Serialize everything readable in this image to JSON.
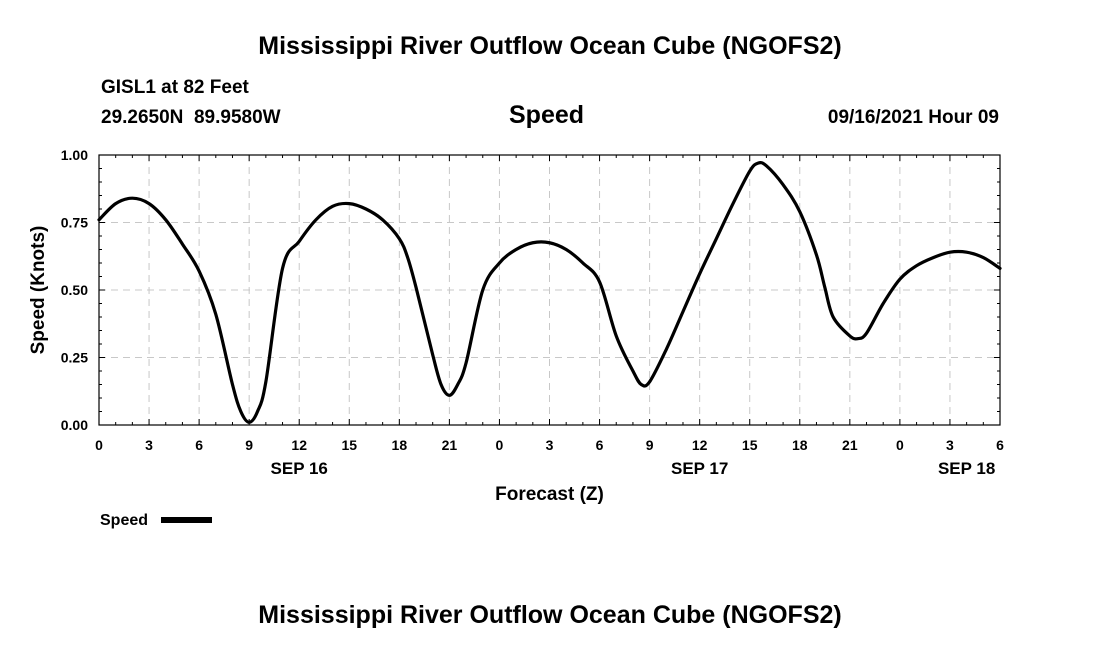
{
  "header": {
    "title": "Mississippi River Outflow Ocean Cube (NGOFS2)",
    "station": "GISL1 at 82 Feet",
    "coords": "29.2650N  89.9580W",
    "variable": "Speed",
    "datetime": "09/16/2021 Hour 09"
  },
  "footer": {
    "title": "Mississippi River Outflow Ocean Cube (NGOFS2)"
  },
  "legend": {
    "label": "Speed",
    "color": "#000000"
  },
  "chart_data": {
    "type": "line",
    "title": "Speed",
    "xlabel": "Forecast (Z)",
    "ylabel": "Speed (Knots)",
    "xlim": [
      0,
      54
    ],
    "ylim": [
      0,
      1
    ],
    "grid": true,
    "x_ticks": [
      0,
      3,
      6,
      9,
      12,
      15,
      18,
      21,
      24,
      27,
      30,
      33,
      36,
      39,
      42,
      45,
      48,
      51,
      54
    ],
    "x_tick_labels": [
      "0",
      "3",
      "6",
      "9",
      "12",
      "15",
      "18",
      "21",
      "0",
      "3",
      "6",
      "9",
      "12",
      "15",
      "18",
      "21",
      "0",
      "3",
      "6"
    ],
    "y_ticks": [
      0,
      0.25,
      0.5,
      0.75,
      1.0
    ],
    "y_tick_labels": [
      "0.00",
      "0.25",
      "0.50",
      "0.75",
      "1.00"
    ],
    "date_labels": [
      {
        "label": "SEP 16",
        "x": 12
      },
      {
        "label": "SEP 17",
        "x": 36
      },
      {
        "label": "SEP 18",
        "x": 52
      }
    ],
    "series": [
      {
        "name": "Speed",
        "x": [
          0,
          1,
          2,
          3,
          4,
          5,
          6,
          7,
          8,
          8.5,
          9,
          9.5,
          10,
          11,
          12,
          13,
          14,
          15,
          16,
          17,
          18,
          18.5,
          19,
          20,
          20.5,
          21,
          21.5,
          22,
          23,
          24,
          25,
          26,
          27,
          28,
          29,
          30,
          31,
          32,
          32.5,
          33,
          34,
          35,
          36,
          37,
          38,
          39,
          39.5,
          40,
          41,
          42,
          43,
          43.5,
          44,
          45,
          45.5,
          46,
          47,
          48,
          49,
          50,
          51,
          52,
          53,
          54
        ],
        "values": [
          0.76,
          0.82,
          0.84,
          0.82,
          0.76,
          0.67,
          0.57,
          0.41,
          0.15,
          0.05,
          0.01,
          0.05,
          0.16,
          0.58,
          0.68,
          0.76,
          0.81,
          0.82,
          0.8,
          0.76,
          0.69,
          0.62,
          0.51,
          0.26,
          0.15,
          0.11,
          0.15,
          0.23,
          0.5,
          0.6,
          0.65,
          0.675,
          0.675,
          0.65,
          0.6,
          0.53,
          0.33,
          0.2,
          0.15,
          0.16,
          0.28,
          0.42,
          0.56,
          0.69,
          0.82,
          0.94,
          0.97,
          0.96,
          0.89,
          0.79,
          0.63,
          0.51,
          0.4,
          0.33,
          0.32,
          0.34,
          0.45,
          0.54,
          0.59,
          0.62,
          0.64,
          0.64,
          0.62,
          0.58
        ]
      }
    ]
  }
}
